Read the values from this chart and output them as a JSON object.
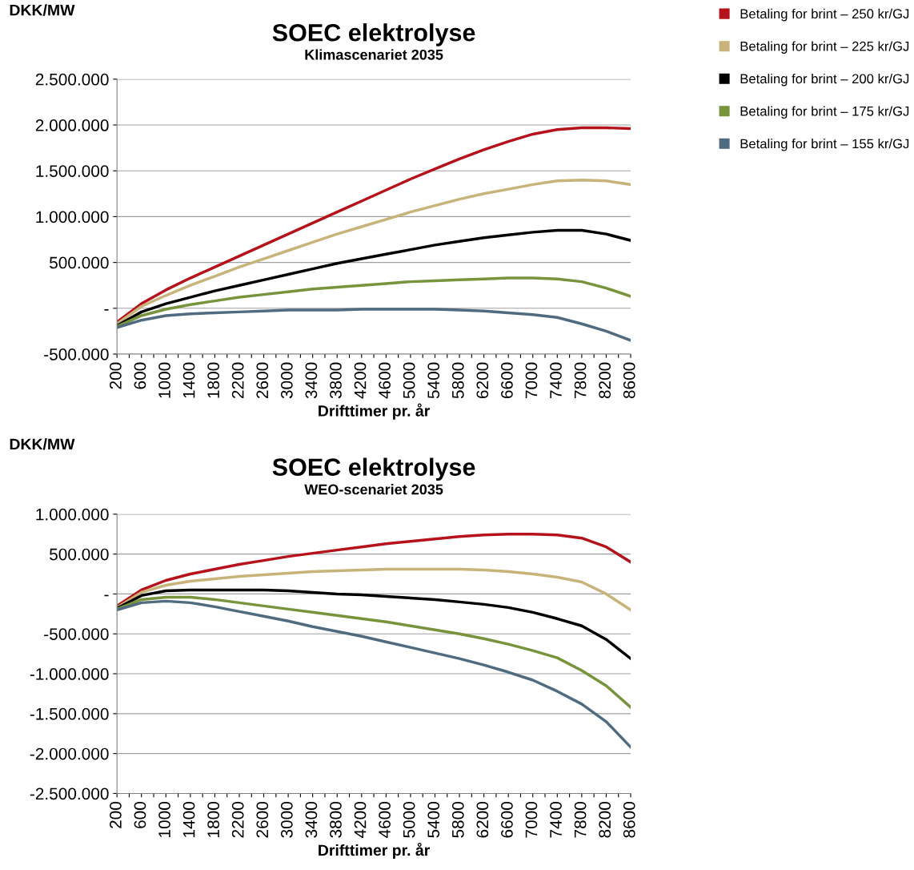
{
  "chart_data": [
    {
      "type": "line",
      "title": "SOEC elektrolyse",
      "subtitle": "Klimascenariet 2035",
      "xlabel": "Drifttimer pr. år",
      "ylabel": "DKK/MW",
      "x": [
        200,
        600,
        1000,
        1400,
        1800,
        2200,
        2600,
        3000,
        3400,
        3800,
        4200,
        4600,
        5000,
        5400,
        5800,
        6200,
        6600,
        7000,
        7400,
        7800,
        8200,
        8600
      ],
      "series": [
        {
          "name": "Betaling for brint – 250 kr/GJ",
          "color": "#b5121b",
          "values": [
            -150000,
            50000,
            200000,
            330000,
            450000,
            570000,
            690000,
            810000,
            930000,
            1050000,
            1170000,
            1290000,
            1410000,
            1520000,
            1630000,
            1730000,
            1820000,
            1900000,
            1950000,
            1970000,
            1970000,
            1960000
          ]
        },
        {
          "name": "Betaling for brint – 225 kr/GJ",
          "color": "#c8b47a",
          "values": [
            -170000,
            20000,
            140000,
            250000,
            350000,
            450000,
            540000,
            630000,
            720000,
            810000,
            890000,
            970000,
            1050000,
            1120000,
            1190000,
            1250000,
            1300000,
            1350000,
            1390000,
            1400000,
            1390000,
            1350000
          ]
        },
        {
          "name": "Betaling for brint – 200 kr/GJ",
          "color": "#000000",
          "values": [
            -190000,
            -40000,
            50000,
            120000,
            190000,
            250000,
            310000,
            370000,
            430000,
            490000,
            540000,
            590000,
            640000,
            690000,
            730000,
            770000,
            800000,
            830000,
            850000,
            850000,
            810000,
            740000
          ]
        },
        {
          "name": "Betaling for brint – 175 kr/GJ",
          "color": "#77933c",
          "values": [
            -200000,
            -80000,
            -10000,
            40000,
            80000,
            120000,
            150000,
            180000,
            210000,
            230000,
            250000,
            270000,
            290000,
            300000,
            310000,
            320000,
            330000,
            330000,
            320000,
            290000,
            220000,
            130000
          ]
        },
        {
          "name": "Betaling for brint – 155 kr/GJ",
          "color": "#4f6b7f",
          "values": [
            -210000,
            -130000,
            -80000,
            -60000,
            -50000,
            -40000,
            -30000,
            -20000,
            -20000,
            -20000,
            -10000,
            -10000,
            -10000,
            -10000,
            -20000,
            -30000,
            -50000,
            -70000,
            -100000,
            -170000,
            -250000,
            -350000
          ]
        }
      ],
      "xlim": [
        200,
        8600
      ],
      "xticks": [
        200,
        {
          "value": 400,
          "label": null
        },
        600,
        {
          "value": 800,
          "label": null
        },
        1000,
        {
          "value": 1200,
          "label": null
        },
        1400,
        {
          "value": 1600,
          "label": null
        },
        1800,
        {
          "value": 2000,
          "label": null
        },
        2200,
        {
          "value": 2400,
          "label": null
        },
        2600,
        {
          "value": 2800,
          "label": null
        },
        3000,
        {
          "value": 3200,
          "label": null
        },
        3400,
        {
          "value": 3600,
          "label": null
        },
        3800,
        {
          "value": 4000,
          "label": null
        },
        4200,
        {
          "value": 4400,
          "label": null
        },
        4600,
        {
          "value": 4800,
          "label": null
        },
        5000,
        {
          "value": 5200,
          "label": null
        },
        5400,
        {
          "value": 5600,
          "label": null
        },
        5800,
        {
          "value": 6000,
          "label": null
        },
        6200,
        {
          "value": 6400,
          "label": null
        },
        6600,
        {
          "value": 6800,
          "label": null
        },
        7000,
        {
          "value": 7200,
          "label": null
        },
        7400,
        {
          "value": 7600,
          "label": null
        },
        7800,
        {
          "value": 8000,
          "label": null
        },
        8200,
        {
          "value": 8400,
          "label": null
        },
        8600
      ],
      "ylim": [
        -500000,
        2500000
      ],
      "yticks": [
        {
          "value": -500000,
          "label": "-500.000"
        },
        {
          "value": 0,
          "label": "-"
        },
        {
          "value": 500000,
          "label": "500.000"
        },
        {
          "value": 1000000,
          "label": "1.000.000"
        },
        {
          "value": 1500000,
          "label": "1.500.000"
        },
        {
          "value": 2000000,
          "label": "2.000.000"
        },
        {
          "value": 2500000,
          "label": "2.500.000"
        }
      ],
      "grid": "y",
      "legend": "right",
      "line_style": "solid",
      "marker": "none"
    },
    {
      "type": "line",
      "title": "SOEC elektrolyse",
      "subtitle": "WEO-scenariet 2035",
      "xlabel": "Drifttimer pr. år",
      "ylabel": "DKK/MW",
      "x": [
        200,
        600,
        1000,
        1400,
        1800,
        2200,
        2600,
        3000,
        3400,
        3800,
        4200,
        4600,
        5000,
        5400,
        5800,
        6200,
        6600,
        7000,
        7400,
        7800,
        8200,
        8600
      ],
      "series": [
        {
          "color": "#b5121b",
          "values": [
            -150000,
            50000,
            170000,
            250000,
            310000,
            370000,
            420000,
            470000,
            510000,
            550000,
            590000,
            630000,
            660000,
            690000,
            720000,
            740000,
            750000,
            750000,
            740000,
            700000,
            590000,
            400000
          ]
        },
        {
          "color": "#c8b47a",
          "values": [
            -170000,
            20000,
            110000,
            160000,
            190000,
            220000,
            240000,
            260000,
            280000,
            290000,
            300000,
            310000,
            310000,
            310000,
            310000,
            300000,
            280000,
            250000,
            210000,
            150000,
            0,
            -200000
          ]
        },
        {
          "color": "#000000",
          "values": [
            -180000,
            -20000,
            40000,
            50000,
            50000,
            50000,
            50000,
            40000,
            20000,
            0,
            -10000,
            -30000,
            -50000,
            -70000,
            -100000,
            -130000,
            -170000,
            -230000,
            -310000,
            -400000,
            -570000,
            -810000
          ]
        },
        {
          "color": "#77933c",
          "values": [
            -190000,
            -70000,
            -40000,
            -40000,
            -70000,
            -110000,
            -150000,
            -190000,
            -230000,
            -270000,
            -310000,
            -350000,
            -400000,
            -450000,
            -500000,
            -560000,
            -630000,
            -710000,
            -800000,
            -960000,
            -1150000,
            -1420000
          ]
        },
        {
          "color": "#4f6b7f",
          "values": [
            -200000,
            -110000,
            -90000,
            -110000,
            -160000,
            -220000,
            -280000,
            -340000,
            -410000,
            -470000,
            -530000,
            -600000,
            -670000,
            -740000,
            -810000,
            -890000,
            -980000,
            -1080000,
            -1220000,
            -1380000,
            -1600000,
            -1920000
          ]
        }
      ],
      "xlim": [
        200,
        8600
      ],
      "xticks": [
        200,
        {
          "value": 400,
          "label": null
        },
        600,
        {
          "value": 800,
          "label": null
        },
        1000,
        {
          "value": 1200,
          "label": null
        },
        1400,
        {
          "value": 1600,
          "label": null
        },
        1800,
        {
          "value": 2000,
          "label": null
        },
        2200,
        {
          "value": 2400,
          "label": null
        },
        2600,
        {
          "value": 2800,
          "label": null
        },
        3000,
        {
          "value": 3200,
          "label": null
        },
        3400,
        {
          "value": 3600,
          "label": null
        },
        3800,
        {
          "value": 4000,
          "label": null
        },
        4200,
        {
          "value": 4400,
          "label": null
        },
        4600,
        {
          "value": 4800,
          "label": null
        },
        5000,
        {
          "value": 5200,
          "label": null
        },
        5400,
        {
          "value": 5600,
          "label": null
        },
        5800,
        {
          "value": 6000,
          "label": null
        },
        6200,
        {
          "value": 6400,
          "label": null
        },
        6600,
        {
          "value": 6800,
          "label": null
        },
        7000,
        {
          "value": 7200,
          "label": null
        },
        7400,
        {
          "value": 7600,
          "label": null
        },
        7800,
        {
          "value": 8000,
          "label": null
        },
        8200,
        {
          "value": 8400,
          "label": null
        },
        8600
      ],
      "ylim": [
        -2500000,
        1000000
      ],
      "yticks": [
        {
          "value": -2500000,
          "label": "-2.500.000"
        },
        {
          "value": -2000000,
          "label": "-2.000.000"
        },
        {
          "value": -1500000,
          "label": "-1.500.000"
        },
        {
          "value": -1000000,
          "label": "-1.000.000"
        },
        {
          "value": -500000,
          "label": "-500.000"
        },
        {
          "value": 0,
          "label": "-"
        },
        {
          "value": 500000,
          "label": "500.000"
        },
        {
          "value": 1000000,
          "label": "1.000.000"
        }
      ],
      "grid": "y",
      "legend": false,
      "line_style": "solid",
      "marker": "none"
    }
  ]
}
